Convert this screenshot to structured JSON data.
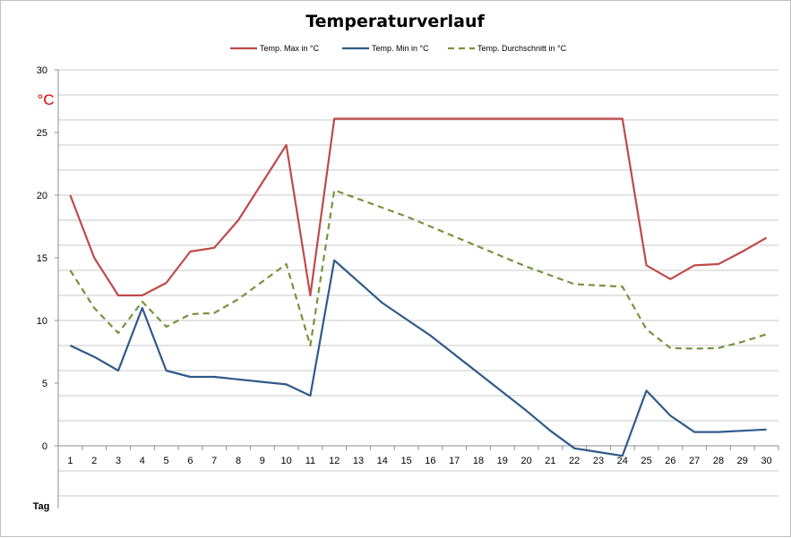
{
  "chart_data": {
    "type": "line",
    "title": "Temperaturverlauf",
    "ylabel": "°C",
    "xlabel": "Tag",
    "ylim": [
      0,
      30
    ],
    "yticks": [
      "0",
      "5",
      "10",
      "15",
      "20",
      "25",
      "30"
    ],
    "grid": true,
    "legend_position": "top",
    "x": [
      "1",
      "2",
      "3",
      "4",
      "5",
      "6",
      "7",
      "8",
      "9",
      "10",
      "11",
      "12",
      "13",
      "14",
      "15",
      "16",
      "17",
      "18",
      "19",
      "20",
      "21",
      "22",
      "23",
      "24",
      "25",
      "26",
      "27",
      "28",
      "29",
      "30"
    ],
    "series": [
      {
        "name": "Temp. Max in °C",
        "color": "#be4b48",
        "dash": "solid",
        "values": [
          20,
          15,
          12,
          12,
          13,
          15.5,
          15.8,
          18,
          21,
          24,
          12,
          26.1,
          26.1,
          26.1,
          26.1,
          26.1,
          26.1,
          26.1,
          26.1,
          26.1,
          26.1,
          26.1,
          26.1,
          26.1,
          14.4,
          13.3,
          14.4,
          14.5,
          15.5,
          16.6
        ]
      },
      {
        "name": "Temp. Min in °C",
        "color": "#2f5a8a",
        "dash": "solid",
        "values": [
          8,
          7.1,
          6,
          11,
          6,
          5.5,
          5.5,
          5.3,
          5.1,
          4.9,
          4,
          14.8,
          13.1,
          11.4,
          10.1,
          8.8,
          7.3,
          5.8,
          4.3,
          2.8,
          1.2,
          -0.2,
          -0.5,
          -0.8,
          4.4,
          2.4,
          1.1,
          1.1,
          1.2,
          1.3
        ]
      },
      {
        "name": "Temp. Durchschnitt in °C",
        "color": "#77933c",
        "dash": "dashed",
        "values": [
          14,
          11,
          9,
          11.5,
          9.5,
          10.5,
          10.6,
          11.7,
          13.1,
          14.5,
          8,
          20.4,
          19.7,
          19,
          18.3,
          17.5,
          16.7,
          15.9,
          15.1,
          14.3,
          13.6,
          12.9,
          12.8,
          12.7,
          9.3,
          7.8,
          7.75,
          7.8,
          8.3,
          8.9
        ]
      }
    ]
  }
}
